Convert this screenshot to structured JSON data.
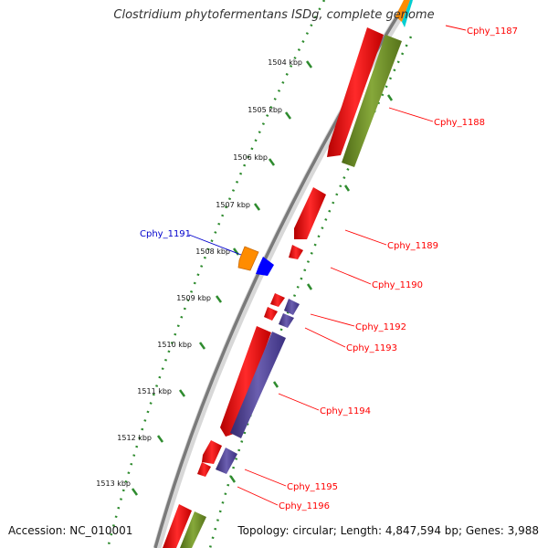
{
  "title": "Clostridium phytofermentans ISDg, complete genome",
  "accession_text": "Accession: NC_010001",
  "stats_text": "Topology: circular; Length: 4,847,594 bp; Genes: 3,988",
  "colors": {
    "backbone": "#808080",
    "forward_gene": "#ff0000",
    "reverse_gene": "#ff0000",
    "rna_gene": "#6b8e23",
    "other_gene": "#483d8b",
    "orange_gene": "#ff8c00",
    "blue_gene": "#0000ff",
    "cyan_gene": "#00ced1",
    "tick": "#228b22",
    "label_red": "#ff0000",
    "label_blue": "#0000cc"
  },
  "kbp_marks": [
    "1504 kbp",
    "1505 kbp",
    "1506 kbp",
    "1507 kbp",
    "1508 kbp",
    "1509 kbp",
    "1510 kbp",
    "1511 kbp",
    "1512 kbp",
    "1513 kbp"
  ],
  "gene_labels": [
    {
      "name": "Cphy_1187",
      "side": "right",
      "color": "label_red"
    },
    {
      "name": "Cphy_1188",
      "side": "right",
      "color": "label_red"
    },
    {
      "name": "Cphy_1189",
      "side": "right",
      "color": "label_red"
    },
    {
      "name": "Cphy_1190",
      "side": "right",
      "color": "label_red"
    },
    {
      "name": "Cphy_1191",
      "side": "left",
      "color": "label_blue"
    },
    {
      "name": "Cphy_1192",
      "side": "right",
      "color": "label_red"
    },
    {
      "name": "Cphy_1193",
      "side": "right",
      "color": "label_red"
    },
    {
      "name": "Cphy_1194",
      "side": "right",
      "color": "label_red"
    },
    {
      "name": "Cphy_1195",
      "side": "right",
      "color": "label_red"
    },
    {
      "name": "Cphy_1196",
      "side": "right",
      "color": "label_red"
    }
  ]
}
